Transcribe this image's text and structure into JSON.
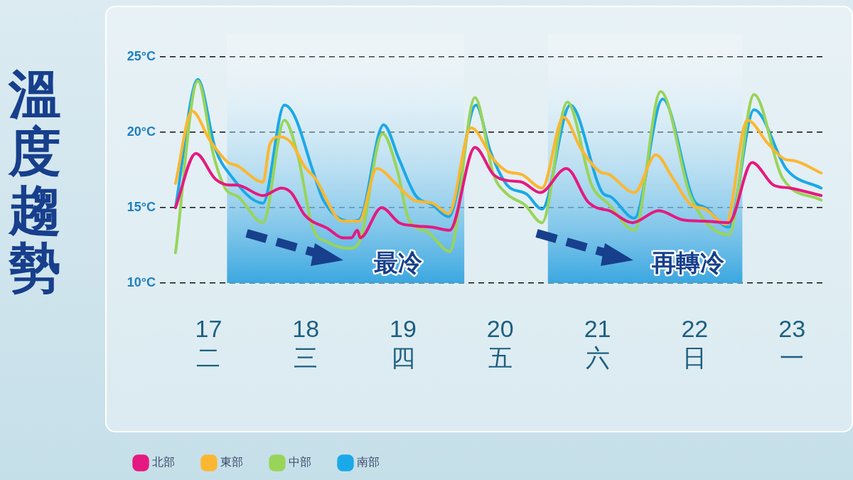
{
  "chart_data": {
    "type": "line",
    "title": "溫度趨勢",
    "xlim": [
      16.5,
      23.35
    ],
    "xticks": [
      {
        "value": 17,
        "label": "17\n二"
      },
      {
        "value": 18,
        "label": "18\n三"
      },
      {
        "value": 19,
        "label": "19\n四"
      },
      {
        "value": 20,
        "label": "20\n五"
      },
      {
        "value": 21,
        "label": "21\n六"
      },
      {
        "value": 22,
        "label": "22\n日"
      },
      {
        "value": 23,
        "label": "23\n一"
      }
    ],
    "ylim": [
      10,
      25
    ],
    "yticks": [
      {
        "value": 10,
        "label": "10°C"
      },
      {
        "value": 15,
        "label": "15°C"
      },
      {
        "value": 20,
        "label": "20°C"
      },
      {
        "value": 25,
        "label": "25°C"
      }
    ],
    "grid": "y",
    "legend": "bottom left",
    "marker": "none",
    "line_style": "solid",
    "bands": [
      {
        "axis": "x",
        "from": 17.19,
        "to": 19.63,
        "color": "#3aa7e0"
      },
      {
        "axis": "x",
        "from": 20.49,
        "to": 22.49,
        "color": "#3aa7e0"
      }
    ],
    "annotations": [
      "最冷",
      "再轉冷"
    ],
    "series": [
      {
        "name": "北部",
        "color": "#e5197f",
        "x": [
          16.66,
          16.87,
          17.07,
          17.22,
          17.29,
          17.56,
          17.75,
          17.85,
          17.99,
          18.23,
          18.38,
          18.47,
          18.53,
          18.56,
          18.78,
          18.96,
          19.11,
          19.3,
          19.48,
          19.74,
          19.93,
          20.07,
          20.22,
          20.41,
          20.68,
          20.9,
          20.99,
          21.12,
          21.36,
          21.63,
          21.87,
          22.11,
          22.35,
          22.59,
          22.81,
          22.98,
          23.3
        ],
        "values": [
          15.0,
          18.6,
          16.9,
          16.5,
          16.5,
          15.8,
          16.3,
          16.0,
          14.5,
          13.6,
          13.0,
          13.0,
          13.5,
          13.0,
          15.0,
          14.0,
          13.8,
          13.7,
          13.5,
          19.0,
          17.2,
          16.8,
          16.7,
          16.0,
          17.6,
          15.4,
          15.0,
          14.8,
          14.0,
          14.8,
          14.2,
          14.1,
          14.0,
          18.0,
          16.5,
          16.3,
          15.8
        ]
      },
      {
        "name": "東部",
        "color": "#fbb731",
        "x": [
          16.66,
          16.83,
          17.02,
          17.2,
          17.29,
          17.56,
          17.63,
          17.73,
          17.85,
          17.99,
          18.09,
          18.38,
          18.55,
          18.73,
          18.94,
          19.11,
          19.3,
          19.47,
          19.7,
          19.93,
          20.07,
          20.22,
          20.43,
          20.65,
          20.83,
          21.02,
          21.12,
          21.38,
          21.6,
          21.77,
          21.96,
          22.11,
          22.32,
          22.54,
          22.76,
          22.93,
          23.03,
          23.3
        ],
        "values": [
          16.6,
          21.4,
          19.4,
          18.0,
          17.8,
          16.7,
          19.2,
          19.7,
          19.3,
          17.7,
          17.0,
          14.1,
          14.1,
          17.6,
          16.5,
          15.5,
          15.3,
          14.6,
          20.3,
          18.2,
          17.4,
          17.2,
          16.3,
          21.0,
          18.9,
          17.4,
          17.2,
          16.0,
          18.5,
          17.0,
          15.2,
          14.9,
          13.9,
          20.8,
          19.2,
          18.2,
          18.1,
          17.3
        ]
      },
      {
        "name": "中部",
        "color": "#99d45a",
        "x": [
          16.66,
          16.89,
          17.05,
          17.17,
          17.31,
          17.56,
          17.78,
          17.92,
          18.07,
          18.23,
          18.45,
          18.55,
          18.79,
          18.94,
          19.06,
          19.25,
          19.48,
          19.74,
          19.93,
          20.07,
          20.25,
          20.43,
          20.69,
          20.94,
          21.12,
          21.38,
          21.65,
          21.96,
          22.35,
          22.61,
          22.9,
          23.3
        ],
        "values": [
          12.0,
          23.4,
          18.5,
          16.3,
          15.7,
          14.0,
          20.8,
          18.4,
          13.7,
          12.7,
          12.3,
          12.7,
          19.9,
          17.5,
          14.2,
          13.4,
          12.1,
          22.3,
          17.2,
          15.9,
          15.2,
          14.0,
          22.0,
          16.5,
          15.2,
          13.5,
          22.7,
          15.7,
          13.2,
          22.5,
          17.0,
          15.5
        ]
      },
      {
        "name": "南部",
        "color": "#1aa9e8",
        "x": [
          16.66,
          16.89,
          17.07,
          17.22,
          17.56,
          17.78,
          17.89,
          18.07,
          18.18,
          18.45,
          18.55,
          18.8,
          18.96,
          19.13,
          19.3,
          19.47,
          19.75,
          19.9,
          20.07,
          20.27,
          20.43,
          20.72,
          21.05,
          21.14,
          21.38,
          21.67,
          21.99,
          22.11,
          22.35,
          22.61,
          22.95,
          23.3
        ],
        "values": [
          15.0,
          23.5,
          18.9,
          17.2,
          15.3,
          21.8,
          21.0,
          17.5,
          15.5,
          14.1,
          14.2,
          20.5,
          18.2,
          15.8,
          15.2,
          14.4,
          21.8,
          18.7,
          16.5,
          15.9,
          14.9,
          21.8,
          16.0,
          15.7,
          14.3,
          22.2,
          15.5,
          15.0,
          13.7,
          21.5,
          17.5,
          16.3
        ]
      }
    ]
  }
}
